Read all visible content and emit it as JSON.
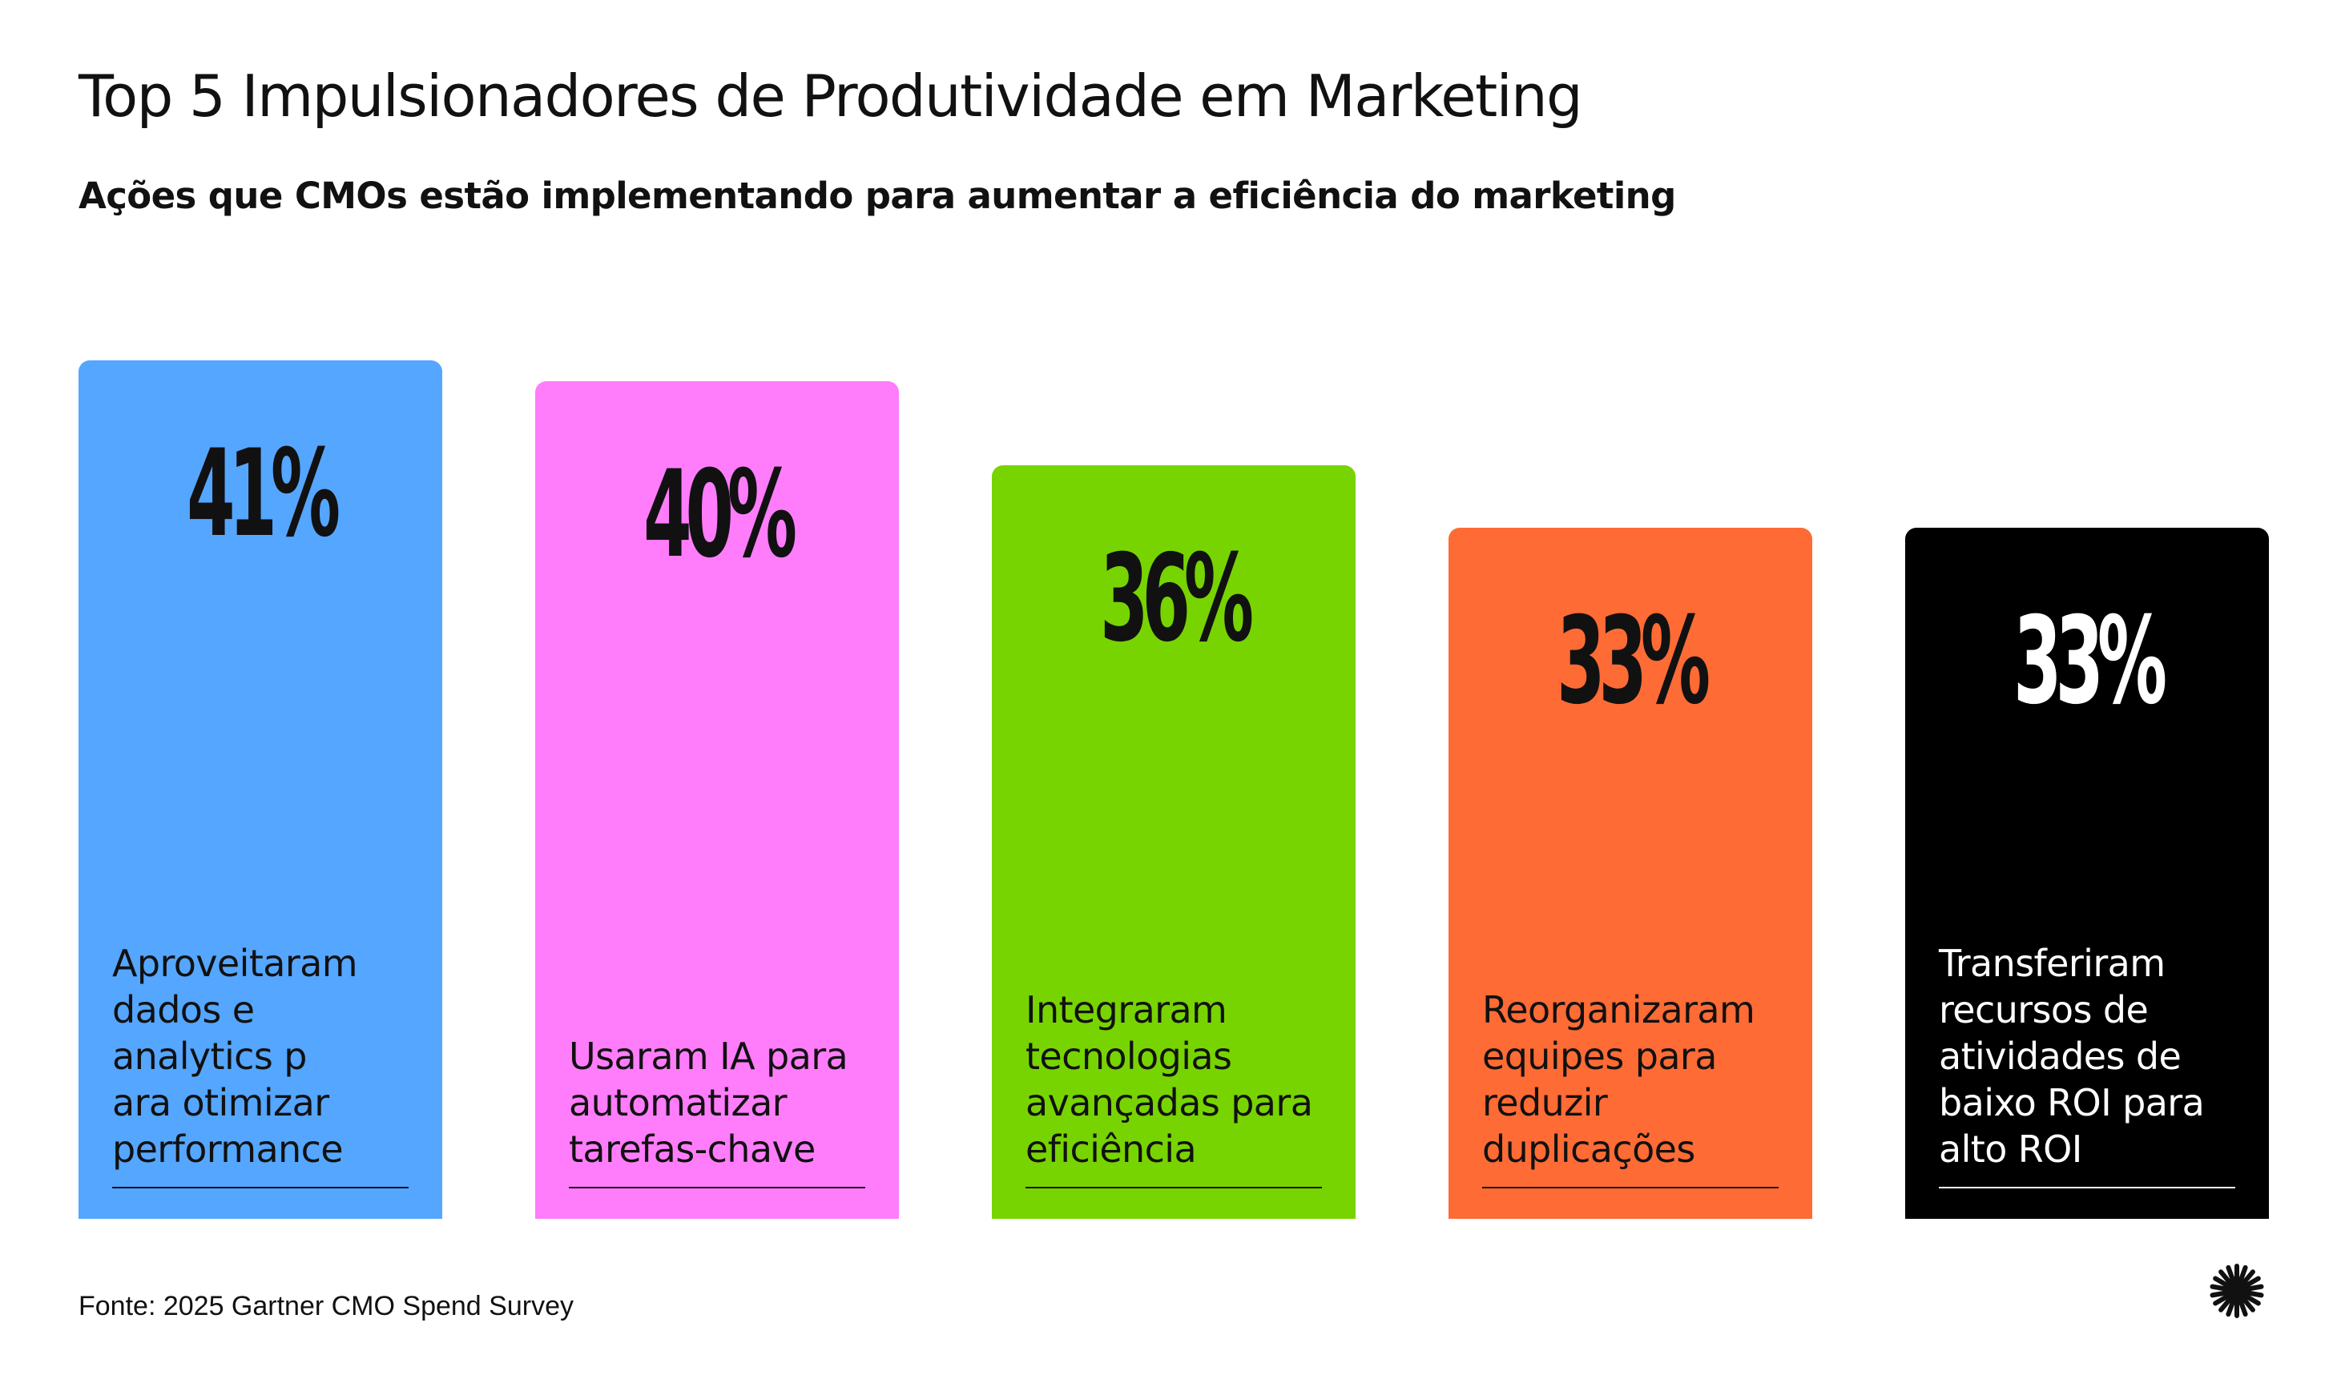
{
  "title": "Top 5 Impulsionadores de Produtividade em Marketing",
  "subtitle": "Ações que CMOs estão implementando para aumentar a eficiência do marketing",
  "source": "Fonte: 2025 Gartner CMO Spend Survey",
  "icons": {
    "logo": "starburst-logo-icon"
  },
  "chart_data": {
    "type": "bar",
    "title": "Top 5 Impulsionadores de Produtividade em Marketing",
    "subtitle": "Ações que CMOs estão implementando para aumentar a eficiência do marketing",
    "unit": "%",
    "categories": [
      "Aproveitaram dados e analytics p ara otimizar performance",
      "Usaram IA para automatizar tarefas-chave",
      "Integraram tecnologias avançadas para eficiência",
      "Reorganizaram equipes para reduzir duplicações",
      "Transferiram recursos de atividades de baixo ROI para alto ROI"
    ],
    "values": [
      41,
      40,
      36,
      33,
      33
    ],
    "value_labels": [
      "41%",
      "40%",
      "36%",
      "33%",
      "33%"
    ],
    "label_lines": [
      [
        "Aproveitaram",
        "dados e",
        "analytics p",
        "ara otimizar",
        "performance"
      ],
      [
        "Usaram IA para",
        "automatizar",
        "tarefas-chave"
      ],
      [
        "Integraram",
        "tecnologias",
        "avançadas para",
        "eficiência"
      ],
      [
        "Reorganizaram",
        "equipes para",
        "reduzir",
        "duplicações"
      ],
      [
        "Transferiram",
        "recursos de",
        "atividades de",
        "baixo ROI para",
        "alto ROI"
      ]
    ],
    "colors": [
      "#55A6FF",
      "#FF7DFB",
      "#77D400",
      "#FF6B35",
      "#000000"
    ],
    "text_colors": [
      "#111111",
      "#111111",
      "#111111",
      "#111111",
      "#FFFFFF"
    ],
    "xlabel": "",
    "ylabel": "",
    "legend": "none",
    "grid": false
  }
}
